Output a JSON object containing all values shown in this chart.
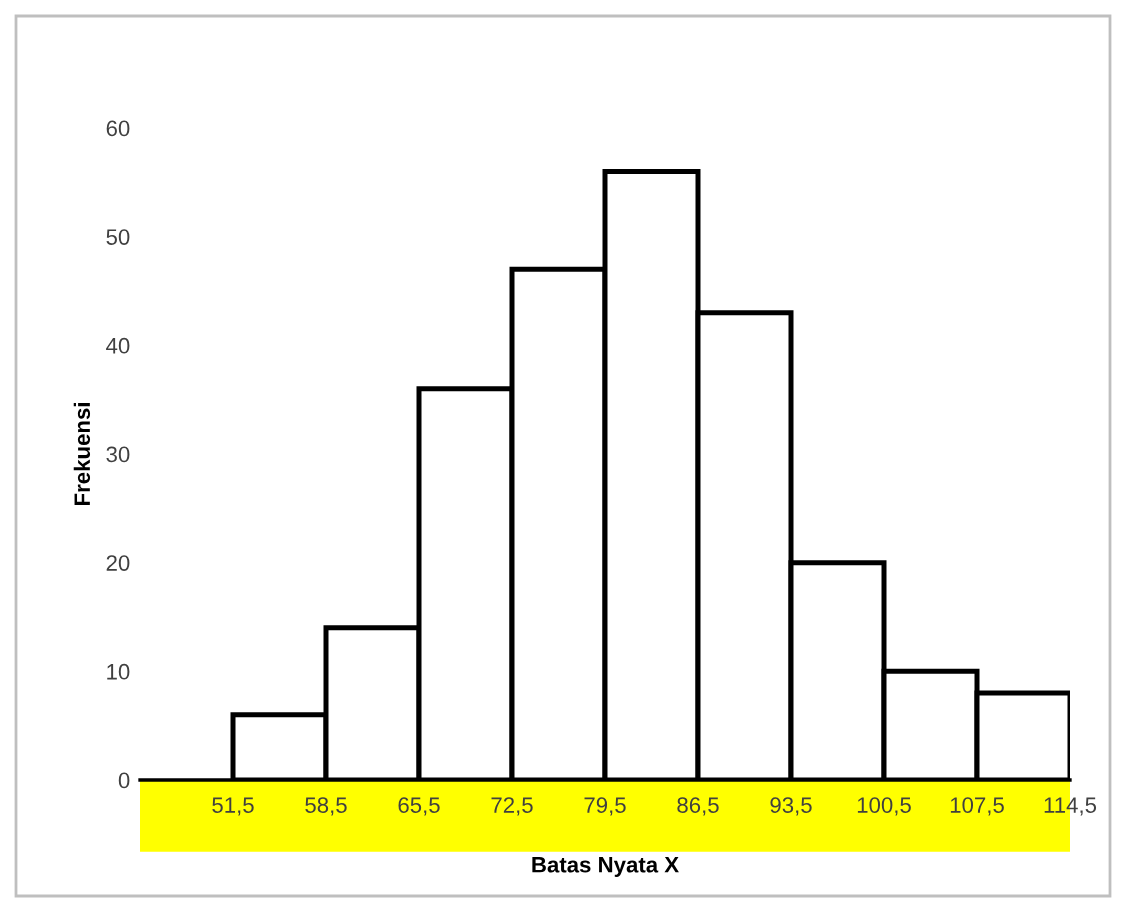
{
  "chart_data": {
    "type": "histogram",
    "xlabel": "Batas Nyata X",
    "ylabel": "Frekuensi",
    "bins": [
      51.5,
      58.5,
      65.5,
      72.5,
      79.5,
      86.5,
      93.5,
      100.5,
      107.5,
      114.5
    ],
    "values": [
      6,
      14,
      36,
      47,
      56,
      43,
      20,
      10,
      8
    ],
    "color": "#ffffff",
    "xlim": [
      44.5,
      114.5
    ],
    "xticks": [
      {
        "value": 51.5,
        "label": "51,5"
      },
      {
        "value": 58.5,
        "label": "58,5"
      },
      {
        "value": 65.5,
        "label": "65,5"
      },
      {
        "value": 72.5,
        "label": "72,5"
      },
      {
        "value": 79.5,
        "label": "79,5"
      },
      {
        "value": 86.5,
        "label": "86,5"
      },
      {
        "value": 93.5,
        "label": "93,5"
      },
      {
        "value": 100.5,
        "label": "100,5"
      },
      {
        "value": 107.5,
        "label": "107,5"
      },
      {
        "value": 114.5,
        "label": "114,5"
      }
    ],
    "ylim": [
      0,
      60
    ],
    "yticks": [
      0,
      10,
      20,
      30,
      40,
      50,
      60
    ],
    "grid": false
  }
}
